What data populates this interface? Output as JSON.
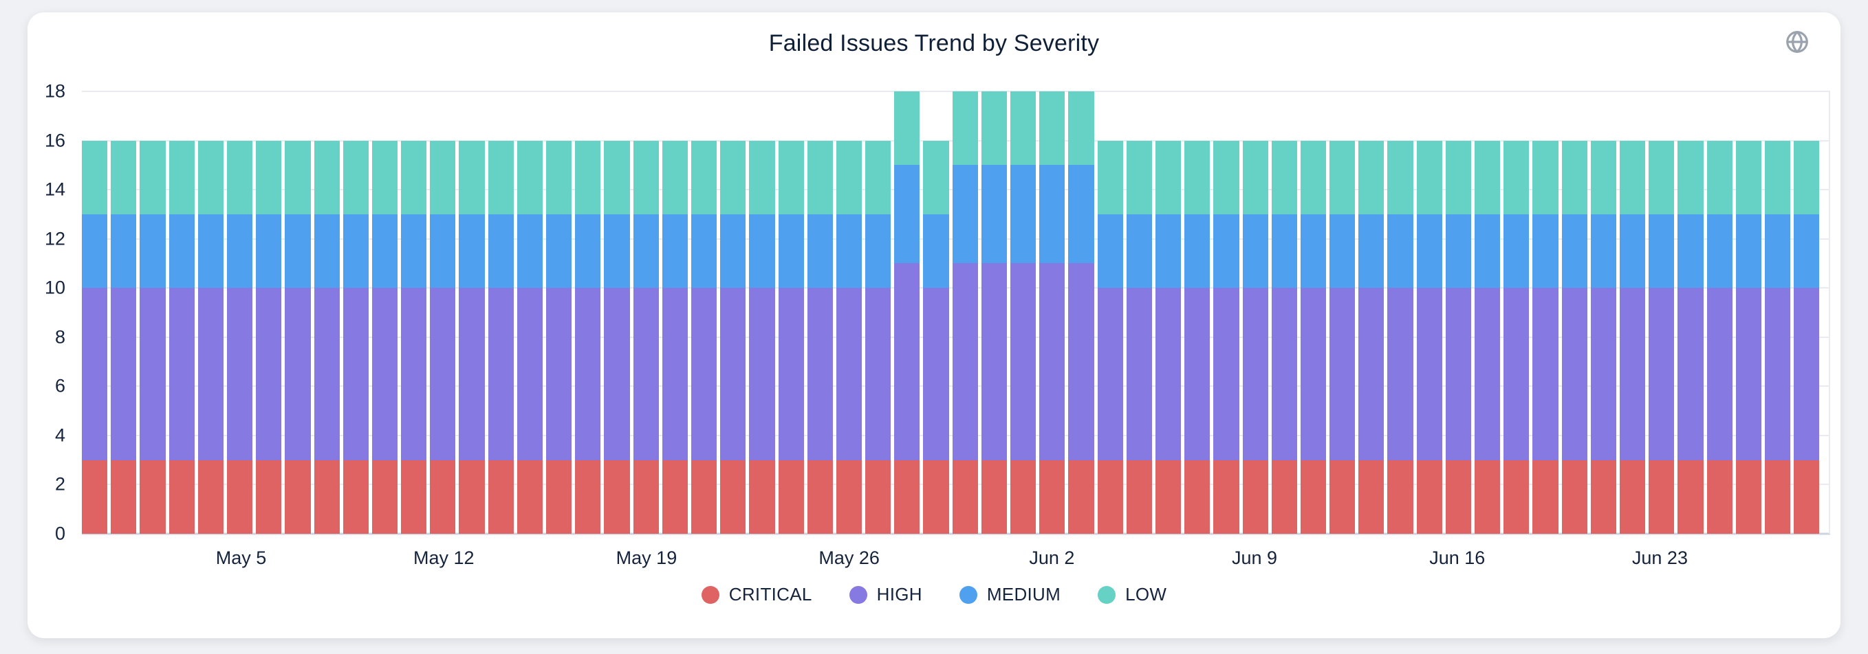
{
  "page": {
    "background": "#eff1f4"
  },
  "header": {
    "title": "Failed Issues Trend by Severity",
    "globe_icon": "globe-icon",
    "globe_icon_color": "#9aa3ad"
  },
  "colors": {
    "critical": "#e06363",
    "high": "#8779e2",
    "medium": "#4fa0ee",
    "low": "#66d1c5",
    "axis_text": "#15233c",
    "gridline": "#e9ebf0",
    "baseline": "#ccd4e0"
  },
  "chart_data": {
    "type": "bar",
    "stacked": true,
    "title": "Failed Issues Trend by Severity",
    "xlabel": "",
    "ylabel": "",
    "ylim": [
      0,
      18
    ],
    "y_ticks": [
      0,
      2,
      4,
      6,
      8,
      10,
      12,
      14,
      16,
      18
    ],
    "grid": true,
    "legend_position": "bottom",
    "x": [
      "Apr 30",
      "May 1",
      "May 2",
      "May 3",
      "May 4",
      "May 5",
      "May 6",
      "May 7",
      "May 8",
      "May 9",
      "May 10",
      "May 11",
      "May 12",
      "May 13",
      "May 14",
      "May 15",
      "May 16",
      "May 17",
      "May 18",
      "May 19",
      "May 20",
      "May 21",
      "May 22",
      "May 23",
      "May 24",
      "May 25",
      "May 26",
      "May 27",
      "May 28",
      "May 29",
      "May 30",
      "May 31",
      "Jun 1",
      "Jun 2",
      "Jun 3",
      "Jun 4",
      "Jun 5",
      "Jun 6",
      "Jun 7",
      "Jun 8",
      "Jun 9",
      "Jun 10",
      "Jun 11",
      "Jun 12",
      "Jun 13",
      "Jun 14",
      "Jun 15",
      "Jun 16",
      "Jun 17",
      "Jun 18",
      "Jun 19",
      "Jun 20",
      "Jun 21",
      "Jun 22",
      "Jun 23",
      "Jun 24",
      "Jun 25",
      "Jun 26",
      "Jun 27",
      "Jun 28"
    ],
    "x_tick_labels": [
      "May 5",
      "May 12",
      "May 19",
      "May 26",
      "Jun 2",
      "Jun 9",
      "Jun 16",
      "Jun 23"
    ],
    "x_tick_indices": [
      5,
      12,
      19,
      26,
      33,
      40,
      47,
      54
    ],
    "series": [
      {
        "name": "CRITICAL",
        "color": "#e06363",
        "values": [
          3,
          3,
          3,
          3,
          3,
          3,
          3,
          3,
          3,
          3,
          3,
          3,
          3,
          3,
          3,
          3,
          3,
          3,
          3,
          3,
          3,
          3,
          3,
          3,
          3,
          3,
          3,
          3,
          3,
          3,
          3,
          3,
          3,
          3,
          3,
          3,
          3,
          3,
          3,
          3,
          3,
          3,
          3,
          3,
          3,
          3,
          3,
          3,
          3,
          3,
          3,
          3,
          3,
          3,
          3,
          3,
          3,
          3,
          3,
          3
        ]
      },
      {
        "name": "HIGH",
        "color": "#8779e2",
        "values": [
          7,
          7,
          7,
          7,
          7,
          7,
          7,
          7,
          7,
          7,
          7,
          7,
          7,
          7,
          7,
          7,
          7,
          7,
          7,
          7,
          7,
          7,
          7,
          7,
          7,
          7,
          7,
          7,
          8,
          7,
          8,
          8,
          8,
          8,
          8,
          7,
          7,
          7,
          7,
          7,
          7,
          7,
          7,
          7,
          7,
          7,
          7,
          7,
          7,
          7,
          7,
          7,
          7,
          7,
          7,
          7,
          7,
          7,
          7,
          7
        ]
      },
      {
        "name": "MEDIUM",
        "color": "#4fa0ee",
        "values": [
          3,
          3,
          3,
          3,
          3,
          3,
          3,
          3,
          3,
          3,
          3,
          3,
          3,
          3,
          3,
          3,
          3,
          3,
          3,
          3,
          3,
          3,
          3,
          3,
          3,
          3,
          3,
          3,
          4,
          3,
          4,
          4,
          4,
          4,
          4,
          3,
          3,
          3,
          3,
          3,
          3,
          3,
          3,
          3,
          3,
          3,
          3,
          3,
          3,
          3,
          3,
          3,
          3,
          3,
          3,
          3,
          3,
          3,
          3,
          3
        ]
      },
      {
        "name": "LOW",
        "color": "#66d1c5",
        "values": [
          3,
          3,
          3,
          3,
          3,
          3,
          3,
          3,
          3,
          3,
          3,
          3,
          3,
          3,
          3,
          3,
          3,
          3,
          3,
          3,
          3,
          3,
          3,
          3,
          3,
          3,
          3,
          3,
          3,
          3,
          3,
          3,
          3,
          3,
          3,
          3,
          3,
          3,
          3,
          3,
          3,
          3,
          3,
          3,
          3,
          3,
          3,
          3,
          3,
          3,
          3,
          3,
          3,
          3,
          3,
          3,
          3,
          3,
          3,
          3
        ]
      }
    ]
  },
  "legend": {
    "items": [
      {
        "label": "CRITICAL",
        "color": "#e06363"
      },
      {
        "label": "HIGH",
        "color": "#8779e2"
      },
      {
        "label": "MEDIUM",
        "color": "#4fa0ee"
      },
      {
        "label": "LOW",
        "color": "#66d1c5"
      }
    ]
  }
}
